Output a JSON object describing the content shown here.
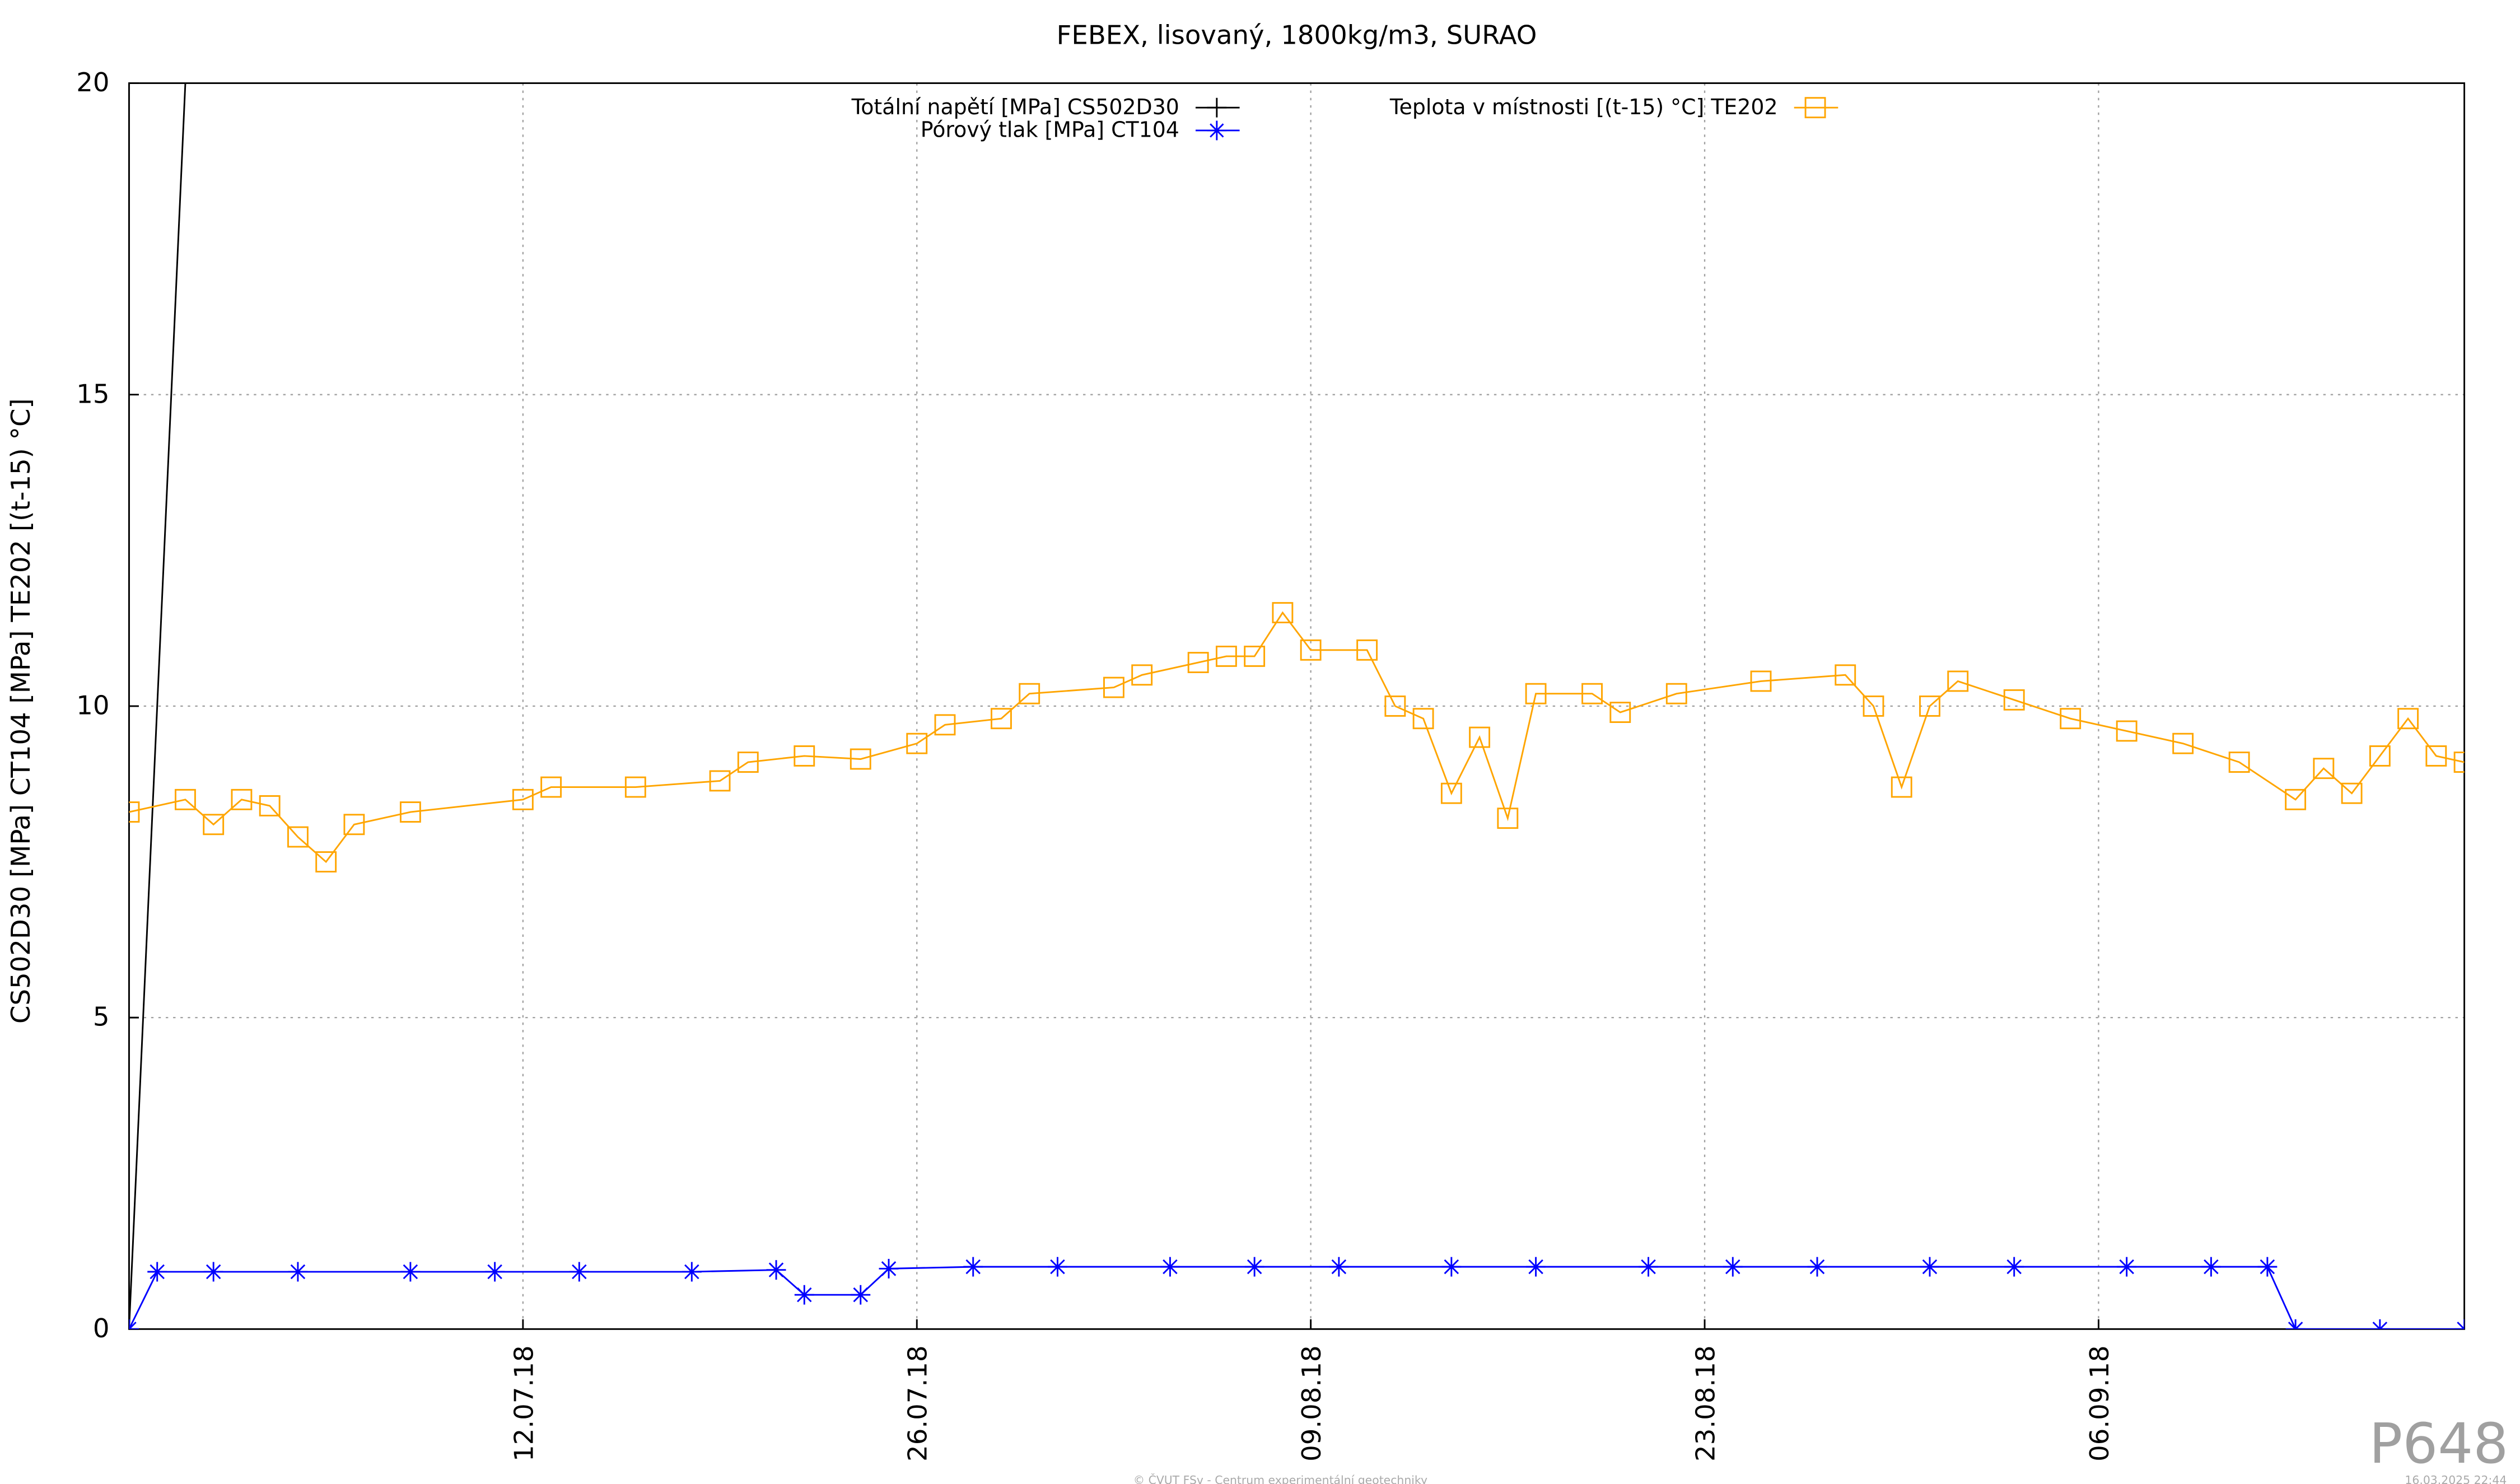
{
  "chart_data": {
    "type": "line",
    "title": "FEBEX, lisovaný, 1800kg/m3, SURAO",
    "y_label": "CS502D30 [MPa] CT104 [MPa] TE202 [(t-15) °C]",
    "xlim": [
      "2018-06-28",
      "2018-09-19"
    ],
    "xticks": [
      {
        "value": "2018-07-12",
        "label": "12.07.18"
      },
      {
        "value": "2018-07-26",
        "label": "26.07.18"
      },
      {
        "value": "2018-08-09",
        "label": "09.08.18"
      },
      {
        "value": "2018-08-23",
        "label": "23.08.18"
      },
      {
        "value": "2018-09-06",
        "label": "06.09.18"
      }
    ],
    "ylim": [
      0,
      20
    ],
    "yticks": [
      0,
      5,
      10,
      15,
      20
    ],
    "grid": true,
    "series": [
      {
        "name": "Totální napětí [MPa] CS502D30",
        "color": "#000000",
        "marker": "plus",
        "x": [
          "2018-06-28",
          "2018-06-30"
        ],
        "values": [
          0,
          20
        ]
      },
      {
        "name": "Pórový tlak [MPa] CT104",
        "color": "#0000ff",
        "marker": "star",
        "x": [
          "2018-06-28",
          "2018-06-29",
          "2018-07-01",
          "2018-07-04",
          "2018-07-08",
          "2018-07-11",
          "2018-07-14",
          "2018-07-18",
          "2018-07-21",
          "2018-07-22",
          "2018-07-24",
          "2018-07-25",
          "2018-07-28",
          "2018-07-31",
          "2018-08-04",
          "2018-08-07",
          "2018-08-10",
          "2018-08-14",
          "2018-08-17",
          "2018-08-21",
          "2018-08-24",
          "2018-08-27",
          "2018-08-31",
          "2018-09-03",
          "2018-09-07",
          "2018-09-10",
          "2018-09-12",
          "2018-09-13",
          "2018-09-16",
          "2018-09-19"
        ],
        "values": [
          0,
          0.92,
          0.92,
          0.92,
          0.92,
          0.92,
          0.92,
          0.92,
          0.95,
          0.55,
          0.55,
          0.97,
          1.0,
          1.0,
          1.0,
          1.0,
          1.0,
          1.0,
          1.0,
          1.0,
          1.0,
          1.0,
          1.0,
          1.0,
          1.0,
          1.0,
          1.0,
          0,
          0,
          0
        ]
      },
      {
        "name": "Teplota v místnosti [(t-15) °C] TE202",
        "color": "#ffa500",
        "marker": "square",
        "x": [
          "2018-06-28",
          "2018-06-30",
          "2018-07-01",
          "2018-07-02",
          "2018-07-03",
          "2018-07-04",
          "2018-07-05",
          "2018-07-06",
          "2018-07-08",
          "2018-07-12",
          "2018-07-13",
          "2018-07-16",
          "2018-07-19",
          "2018-07-20",
          "2018-07-22",
          "2018-07-24",
          "2018-07-26",
          "2018-07-27",
          "2018-07-29",
          "2018-07-30",
          "2018-08-02",
          "2018-08-03",
          "2018-08-05",
          "2018-08-06",
          "2018-08-07",
          "2018-08-08",
          "2018-08-09",
          "2018-08-11",
          "2018-08-12",
          "2018-08-13",
          "2018-08-14",
          "2018-08-15",
          "2018-08-16",
          "2018-08-17",
          "2018-08-19",
          "2018-08-20",
          "2018-08-22",
          "2018-08-25",
          "2018-08-28",
          "2018-08-29",
          "2018-08-30",
          "2018-08-31",
          "2018-09-01",
          "2018-09-03",
          "2018-09-05",
          "2018-09-07",
          "2018-09-09",
          "2018-09-11",
          "2018-09-13",
          "2018-09-14",
          "2018-09-15",
          "2018-09-16",
          "2018-09-17",
          "2018-09-18",
          "2018-09-19"
        ],
        "values": [
          8.3,
          8.5,
          8.1,
          8.5,
          8.4,
          7.9,
          7.5,
          8.1,
          8.3,
          8.5,
          8.7,
          8.7,
          8.8,
          9.1,
          9.2,
          9.15,
          9.4,
          9.7,
          9.8,
          10.2,
          10.3,
          10.5,
          10.7,
          10.8,
          10.8,
          11.5,
          10.9,
          10.9,
          10.0,
          9.8,
          8.6,
          9.5,
          8.2,
          10.2,
          10.2,
          9.9,
          10.2,
          10.4,
          10.5,
          10.0,
          8.7,
          10.0,
          10.4,
          10.1,
          9.8,
          9.6,
          9.4,
          9.1,
          8.5,
          9.0,
          8.6,
          9.2,
          9.8,
          9.2,
          9.1
        ]
      }
    ]
  },
  "watermark": "P648",
  "footer": "© ČVUT FSv - Centrum experimentální geotechniky",
  "timestamp": "16.03.2025 22:44"
}
